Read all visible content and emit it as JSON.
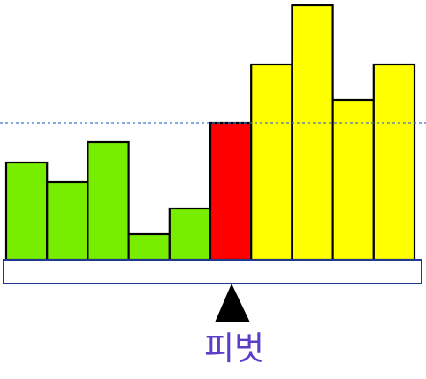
{
  "diagram": {
    "pivot_label": "피벗",
    "colors": {
      "less_than_pivot": "#77ee00",
      "pivot": "#ff0000",
      "greater_than_pivot": "#ffff00",
      "bar_outline": "#000000",
      "base_outline": "#1f3a8c",
      "pivot_line": "#4472c4",
      "label": "#5a3ec8"
    },
    "bars": [
      {
        "group": "less",
        "value": 110
      },
      {
        "group": "less",
        "value": 88
      },
      {
        "group": "less",
        "value": 133
      },
      {
        "group": "less",
        "value": 29
      },
      {
        "group": "less",
        "value": 58
      },
      {
        "group": "pivot",
        "value": 155
      },
      {
        "group": "greater",
        "value": 221
      },
      {
        "group": "greater",
        "value": 288
      },
      {
        "group": "greater",
        "value": 181
      },
      {
        "group": "greater",
        "value": 221
      }
    ]
  }
}
